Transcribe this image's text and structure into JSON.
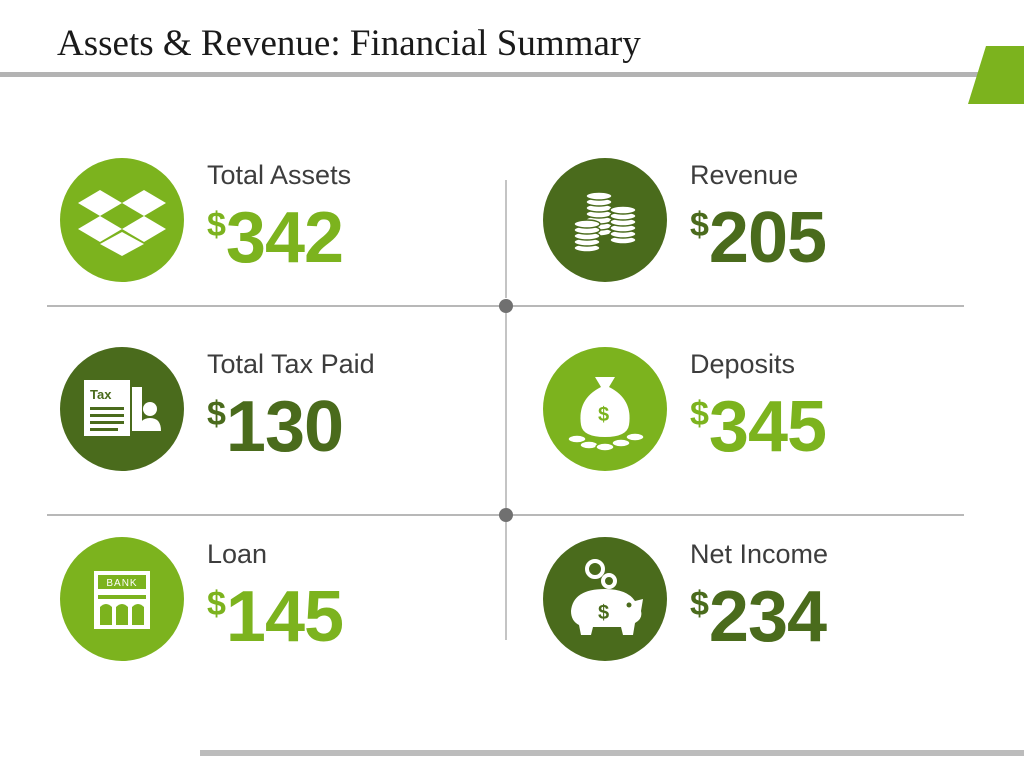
{
  "title": "Assets & Revenue: Financial Summary",
  "colors": {
    "light_green": "#7cb31e",
    "dark_green": "#4a6b1c",
    "accent": "#7cb31e"
  },
  "cards": [
    {
      "label": "Total Assets",
      "currency": "$",
      "value": "342",
      "icon": "dropbox-box-icon",
      "tone": "light"
    },
    {
      "label": "Revenue",
      "currency": "$",
      "value": "205",
      "icon": "coin-stacks-icon",
      "tone": "dark"
    },
    {
      "label": "Total Tax Paid",
      "currency": "$",
      "value": "130",
      "icon": "tax-document-icon",
      "tone": "dark"
    },
    {
      "label": "Deposits",
      "currency": "$",
      "value": "345",
      "icon": "money-bag-icon",
      "tone": "light"
    },
    {
      "label": "Loan",
      "currency": "$",
      "value": "145",
      "icon": "bank-icon",
      "tone": "light"
    },
    {
      "label": "Net Income",
      "currency": "$",
      "value": "234",
      "icon": "piggy-bank-icon",
      "tone": "dark"
    }
  ],
  "icon_text": {
    "tax": "Tax",
    "bank": "BANK",
    "dollar": "$"
  }
}
